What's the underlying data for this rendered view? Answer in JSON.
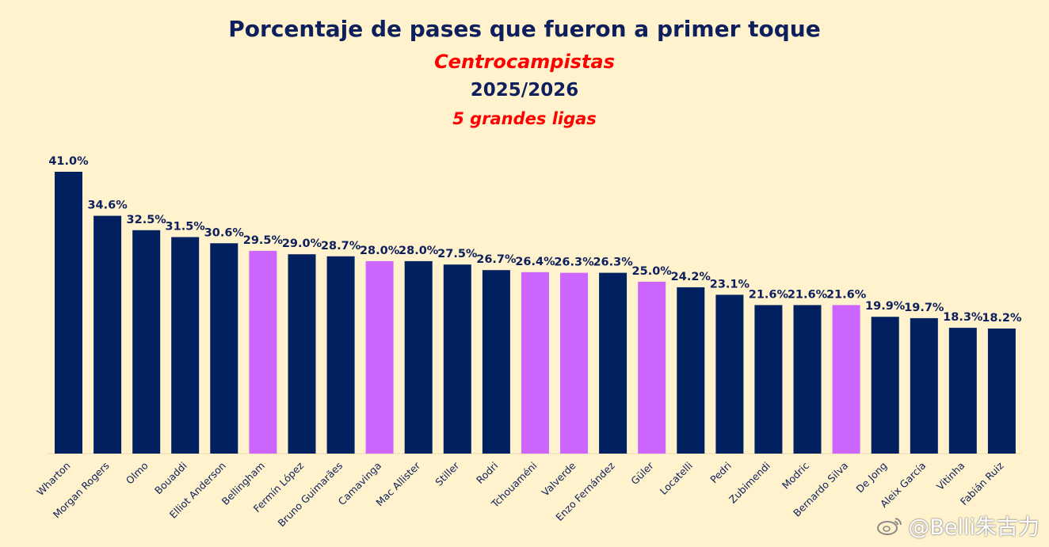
{
  "chart_data": {
    "type": "bar",
    "title": "Porcentaje de pases que fueron a primer toque",
    "subtitle": "Centrocampistas",
    "season": "2025/2026",
    "competition": "5 grandes ligas",
    "categories": [
      "Wharton",
      "Morgan Rogers",
      "Olmo",
      "Bouaddi",
      "Elliot Anderson",
      "Bellingham",
      "Fermín López",
      "Bruno Guimarães",
      "Camavinga",
      "Mac Allister",
      "Stiller",
      "Rodri",
      "Tchouaméni",
      "Valverde",
      "Enzo Fernández",
      "Güler",
      "Locatelli",
      "Pedri",
      "Zubimendi",
      "Modric",
      "Bernardo Silva",
      "De Jong",
      "Aleix García",
      "Vitinha",
      "Fabián Ruiz"
    ],
    "values": [
      41.0,
      34.6,
      32.5,
      31.5,
      30.6,
      29.5,
      29.0,
      28.7,
      28.0,
      28.0,
      27.5,
      26.7,
      26.4,
      26.3,
      26.3,
      25.0,
      24.2,
      23.1,
      21.6,
      21.6,
      21.6,
      19.9,
      19.7,
      18.3,
      18.2
    ],
    "value_labels": [
      "41.0%",
      "34.6%",
      "32.5%",
      "31.5%",
      "30.6%",
      "29.5%",
      "29.0%",
      "28.7%",
      "28.0%",
      "28.0%",
      "27.5%",
      "26.7%",
      "26.4%",
      "26.3%",
      "26.3%",
      "25.0%",
      "24.2%",
      "23.1%",
      "21.6%",
      "21.6%",
      "21.6%",
      "19.9%",
      "19.7%",
      "18.3%",
      "18.2%"
    ],
    "highlighted": [
      false,
      false,
      false,
      false,
      false,
      true,
      false,
      false,
      true,
      false,
      false,
      false,
      true,
      true,
      false,
      true,
      false,
      false,
      false,
      false,
      true,
      false,
      false,
      false,
      false
    ],
    "ylim": [
      0,
      41
    ],
    "grid": false,
    "colors": {
      "default": "#002060",
      "highlight": "#cc66ff",
      "background": "#fff2cc",
      "label": "#0d1f5c"
    }
  },
  "watermark": "@Belli朱古力"
}
